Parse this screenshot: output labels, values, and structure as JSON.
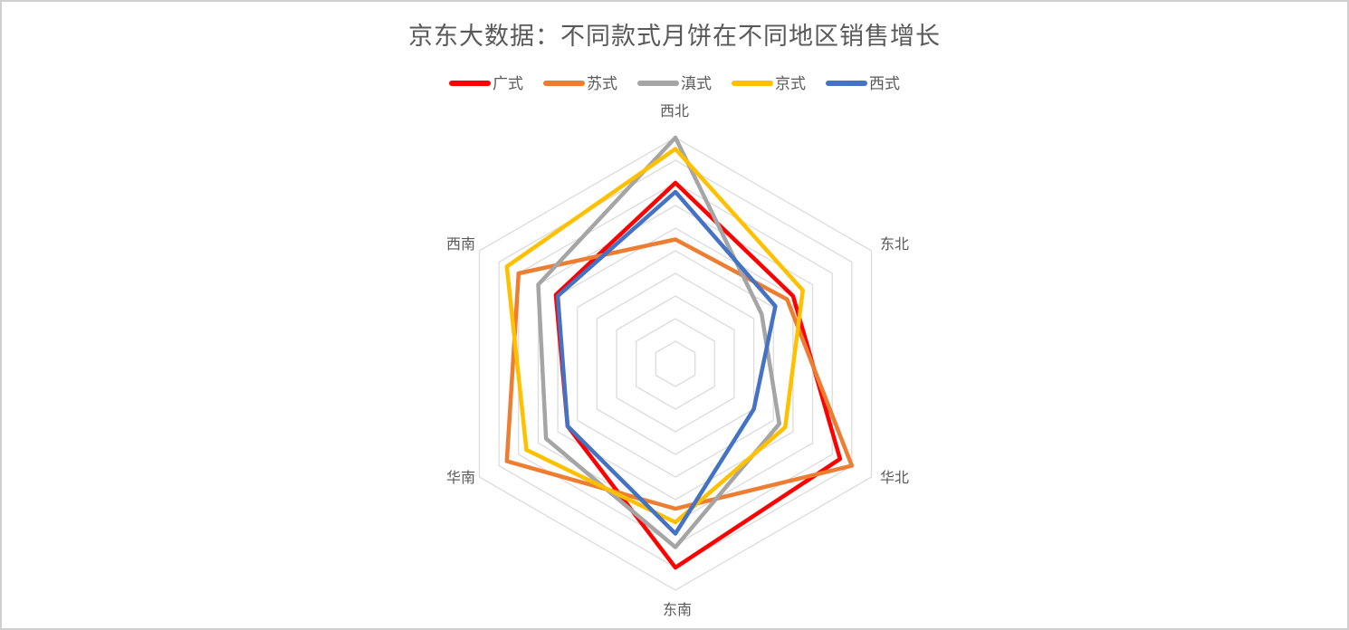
{
  "title": "京东大数据：不同款式月饼在不同地区销售增长",
  "chart_data": {
    "type": "radar",
    "title": "京东大数据：不同款式月饼在不同地区销售增长",
    "categories": [
      "西北",
      "东北",
      "华北",
      "东南",
      "华南",
      "西南"
    ],
    "series": [
      {
        "name": "广式",
        "color": "#FF0000",
        "values": [
          8.0,
          6.0,
          8.4,
          9.0,
          5.5,
          6.1
        ]
      },
      {
        "name": "苏式",
        "color": "#ED7D31",
        "values": [
          5.5,
          5.7,
          9.0,
          6.4,
          8.6,
          8.0
        ]
      },
      {
        "name": "滇式",
        "color": "#A5A5A5",
        "values": [
          10.0,
          4.4,
          5.3,
          8.1,
          6.6,
          7.0
        ]
      },
      {
        "name": "京式",
        "color": "#FFC000",
        "values": [
          9.5,
          6.5,
          5.6,
          7.0,
          7.6,
          8.6
        ]
      },
      {
        "name": "西式",
        "color": "#4472C4",
        "values": [
          7.6,
          5.1,
          4.0,
          7.5,
          5.5,
          6.0
        ]
      }
    ],
    "value_axis": {
      "min": 0,
      "max": 10,
      "rings": 10,
      "tick_labels_visible": false
    },
    "grid": {
      "shape": "hexagon",
      "color": "#DCDCDC",
      "spokes_visible": false
    },
    "legend_position": "top",
    "start_angle_deg": 0,
    "direction": "clockwise"
  },
  "style_colors": {
    "title_text": "#595959",
    "axis_label_text": "#595959",
    "gridline": "#DCDCDC",
    "card_border": "#CFCFCF",
    "background": "#FFFFFF"
  }
}
